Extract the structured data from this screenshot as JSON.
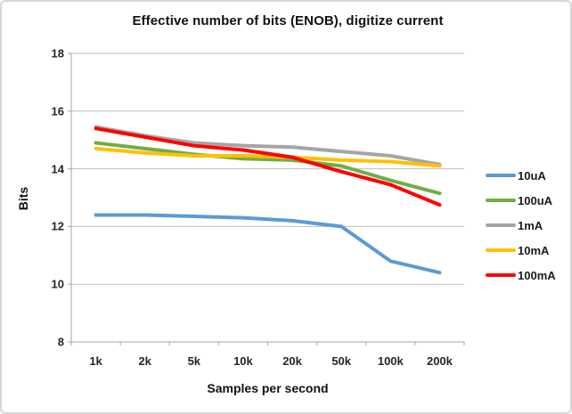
{
  "chart_data": {
    "type": "line",
    "title": "Effective number of bits (ENOB), digitize current",
    "xlabel": "Samples per second",
    "ylabel": "Bits",
    "categories": [
      "1k",
      "2k",
      "5k",
      "10k",
      "20k",
      "50k",
      "100k",
      "200k"
    ],
    "ylim": [
      8,
      18
    ],
    "ytick_step": 2,
    "grid": "horizontal-only",
    "legend_position": "right",
    "colors": {
      "gridline": "#bfbfbf",
      "axis": "#a6a6a6",
      "frame_border": "#d6d6d6"
    },
    "series": [
      {
        "name": "10uA",
        "color": "#5B9BD5",
        "values": [
          12.4,
          12.4,
          12.35,
          12.3,
          12.2,
          12.0,
          10.8,
          10.4
        ]
      },
      {
        "name": "100uA",
        "color": "#70AD47",
        "values": [
          14.9,
          14.7,
          14.5,
          14.35,
          14.3,
          14.1,
          13.6,
          13.15
        ]
      },
      {
        "name": "1mA",
        "color": "#A5A5A5",
        "values": [
          15.45,
          15.15,
          14.9,
          14.8,
          14.75,
          14.6,
          14.45,
          14.15
        ]
      },
      {
        "name": "10mA",
        "color": "#FFC000",
        "values": [
          14.7,
          14.55,
          14.45,
          14.45,
          14.4,
          14.3,
          14.25,
          14.1
        ]
      },
      {
        "name": "100mA",
        "color": "#FF0000",
        "values": [
          15.4,
          15.1,
          14.8,
          14.65,
          14.4,
          13.9,
          13.45,
          12.75
        ]
      }
    ]
  }
}
